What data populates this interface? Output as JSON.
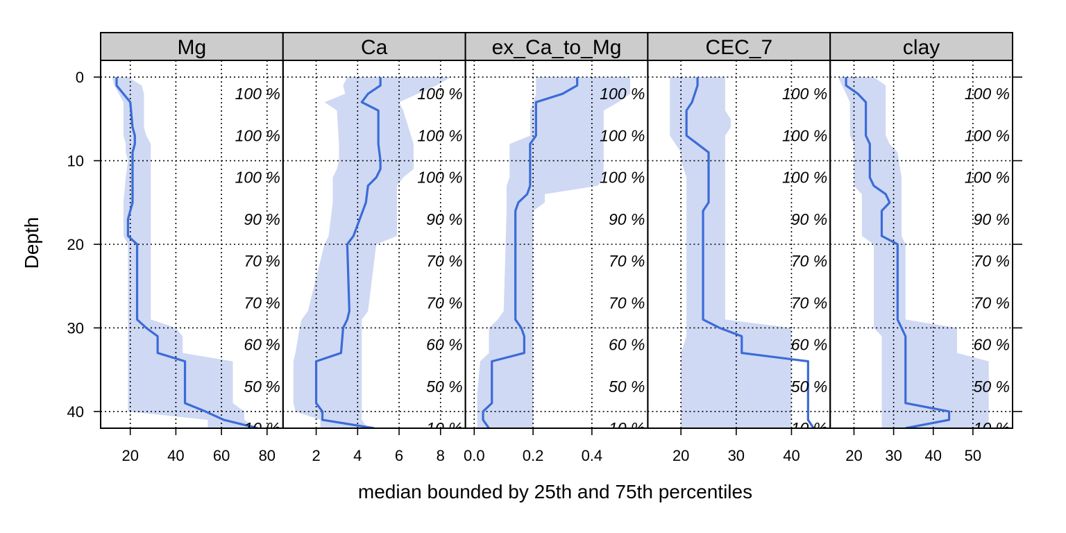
{
  "chart_data": {
    "type": "line",
    "xlabel": "median bounded by 25th and 75th percentiles",
    "ylabel": "Depth",
    "ylim": [
      42,
      -2
    ],
    "y_ticks": [
      0,
      10,
      20,
      30,
      40
    ],
    "y_tick_labels": [
      "0",
      "10",
      "20",
      "30",
      "40"
    ],
    "grid": true,
    "colors": {
      "line": "#3b6bd8",
      "band": "#cfd9f3",
      "strip": "#cccccc",
      "grid": "#000000"
    },
    "panels": [
      {
        "name": "Mg",
        "xlim": [
          7,
          87
        ],
        "x_ticks": [
          20,
          40,
          60,
          80
        ],
        "x_tick_labels": [
          "20",
          "40",
          "60",
          "80"
        ],
        "depth": [
          0,
          1,
          2,
          3,
          6,
          7,
          8,
          9,
          10,
          12,
          15,
          16,
          17,
          19,
          20,
          29,
          30,
          31,
          33,
          34,
          39,
          40,
          41,
          42
        ],
        "median": [
          14,
          14,
          17,
          20,
          21,
          22,
          22,
          21,
          21,
          21,
          21,
          20,
          19,
          19,
          23,
          23,
          27,
          32,
          32,
          44,
          44,
          53,
          61,
          76
        ],
        "q25": [
          12,
          13,
          15,
          17,
          17,
          17,
          18,
          18,
          19,
          18,
          17,
          17,
          17,
          17,
          19,
          19,
          19,
          19,
          19,
          19,
          19,
          19,
          54,
          54
        ],
        "q75": [
          19,
          25,
          26,
          26,
          26,
          27,
          29,
          29,
          29,
          29,
          29,
          29,
          29,
          29,
          29,
          29,
          40,
          43,
          43,
          65,
          65,
          70,
          70,
          76
        ],
        "pct_labels": [
          "100 %",
          "100 %",
          "100 %",
          "90 %",
          "70 %",
          "70 %",
          "60 %",
          "50 %",
          "10 %"
        ]
      },
      {
        "name": "Ca",
        "xlim": [
          0.4,
          9.2
        ],
        "x_ticks": [
          2,
          4,
          6,
          8
        ],
        "x_tick_labels": [
          "2",
          "4",
          "6",
          "8"
        ],
        "depth": [
          0,
          1,
          2,
          3,
          4,
          8,
          10,
          11,
          12,
          13,
          15,
          19,
          20,
          28,
          29,
          30,
          33,
          34,
          39,
          40,
          41,
          42
        ],
        "median": [
          5.1,
          5.1,
          4.5,
          4.2,
          5.0,
          5.0,
          5.1,
          5.1,
          4.9,
          4.5,
          4.4,
          3.8,
          3.5,
          3.6,
          3.5,
          3.3,
          3.2,
          2.0,
          2.0,
          2.3,
          2.3,
          4.8
        ],
        "q25": [
          3.5,
          3.3,
          3.4,
          2.4,
          3.0,
          3.1,
          3.1,
          3.0,
          2.8,
          2.8,
          2.8,
          2.6,
          2.4,
          1.6,
          1.3,
          1.2,
          1.0,
          0.9,
          0.9,
          1.0,
          2.2,
          2.2
        ],
        "q75": [
          8.5,
          7.8,
          6.9,
          6.0,
          6.2,
          6.7,
          6.7,
          6.7,
          6.2,
          5.9,
          5.9,
          5.9,
          4.9,
          4.5,
          4.2,
          4.2,
          4.2,
          4.2,
          4.2,
          4.2,
          4.2,
          4.5
        ],
        "pct_labels": [
          "100 %",
          "100 %",
          "100 %",
          "90 %",
          "70 %",
          "70 %",
          "60 %",
          "50 %",
          "10 %"
        ]
      },
      {
        "name": "ex_Ca_to_Mg",
        "xlim": [
          -0.03,
          0.59
        ],
        "x_ticks": [
          0.0,
          0.2,
          0.4
        ],
        "x_tick_labels": [
          "0.0",
          "0.2",
          "0.4"
        ],
        "depth": [
          0,
          1,
          2,
          3,
          4,
          7,
          8,
          9,
          10,
          12,
          13,
          14,
          15,
          16,
          28,
          29,
          30,
          31,
          32,
          33,
          34,
          38,
          39,
          40,
          41,
          42
        ],
        "median": [
          0.35,
          0.35,
          0.3,
          0.21,
          0.21,
          0.21,
          0.19,
          0.19,
          0.19,
          0.19,
          0.19,
          0.18,
          0.15,
          0.14,
          0.14,
          0.14,
          0.16,
          0.17,
          0.17,
          0.17,
          0.06,
          0.06,
          0.06,
          0.03,
          0.03,
          0.05
        ],
        "q25": [
          0.21,
          0.21,
          0.21,
          0.2,
          0.19,
          0.19,
          0.12,
          0.12,
          0.12,
          0.12,
          0.11,
          0.11,
          0.11,
          0.11,
          0.1,
          0.08,
          0.05,
          0.05,
          0.05,
          0.05,
          0.02,
          0.01,
          0.01,
          0.01,
          0.01,
          0.01
        ],
        "q75": [
          0.53,
          0.53,
          0.53,
          0.49,
          0.44,
          0.44,
          0.44,
          0.44,
          0.44,
          0.44,
          0.42,
          0.24,
          0.24,
          0.2,
          0.2,
          0.2,
          0.2,
          0.2,
          0.2,
          0.2,
          0.2,
          0.2,
          0.2,
          0.2,
          0.2,
          0.2
        ],
        "pct_labels": [
          "100 %",
          "100 %",
          "100 %",
          "90 %",
          "70 %",
          "70 %",
          "60 %",
          "50 %",
          "10 %"
        ]
      },
      {
        "name": "CEC_7",
        "xlim": [
          14,
          47
        ],
        "x_ticks": [
          20,
          30,
          40
        ],
        "x_tick_labels": [
          "20",
          "30",
          "40"
        ],
        "depth": [
          0,
          1,
          3,
          4,
          5,
          6,
          7,
          8,
          9,
          10,
          12,
          15,
          16,
          20,
          29,
          30,
          31,
          33,
          34,
          38,
          40,
          41,
          42
        ],
        "median": [
          23,
          23,
          22,
          21,
          21,
          21,
          21,
          23,
          25,
          25,
          25,
          25,
          24,
          24,
          24,
          27,
          31,
          31,
          43,
          43,
          43,
          43,
          44
        ],
        "q25": [
          18,
          18,
          18,
          18,
          18,
          18,
          18,
          19,
          20,
          20,
          21,
          21,
          21,
          21,
          21,
          21,
          21,
          20,
          20,
          20,
          20,
          20,
          20
        ],
        "q75": [
          28,
          28,
          28,
          28,
          29,
          29,
          28,
          28,
          28,
          28,
          28,
          28,
          28,
          28,
          28,
          40,
          40,
          40,
          40,
          40,
          40,
          40,
          40
        ],
        "pct_labels": [
          "100 %",
          "100 %",
          "100 %",
          "90 %",
          "70 %",
          "70 %",
          "60 %",
          "50 %",
          "10 %"
        ]
      },
      {
        "name": "clay",
        "xlim": [
          14,
          60
        ],
        "x_ticks": [
          20,
          30,
          40,
          50
        ],
        "x_tick_labels": [
          "20",
          "30",
          "40",
          "50"
        ],
        "depth": [
          0,
          1,
          2,
          3,
          7,
          8,
          9,
          12,
          13,
          14,
          15,
          16,
          19,
          20,
          29,
          30,
          31,
          33,
          34,
          39,
          40,
          41,
          42
        ],
        "median": [
          18,
          18,
          21,
          23,
          23,
          24,
          24,
          24,
          25,
          28,
          29,
          27,
          27,
          31,
          31,
          32,
          33,
          33,
          33,
          33,
          44,
          44,
          33
        ],
        "q25": [
          16,
          17,
          18,
          19,
          19,
          20,
          20,
          20,
          20,
          22,
          22,
          22,
          22,
          25,
          25,
          25,
          27,
          27,
          27,
          27,
          27,
          27,
          27
        ],
        "q75": [
          25,
          28,
          28,
          28,
          28,
          29,
          31,
          32,
          32,
          32,
          32,
          32,
          32,
          33,
          33,
          46,
          46,
          46,
          54,
          54,
          54,
          54,
          54
        ],
        "pct_labels": [
          "100 %",
          "100 %",
          "100 %",
          "90 %",
          "70 %",
          "70 %",
          "60 %",
          "50 %",
          "10 %"
        ]
      }
    ],
    "pct_label_depths": [
      2,
      7,
      12,
      17,
      22,
      27,
      32,
      37,
      42
    ]
  }
}
